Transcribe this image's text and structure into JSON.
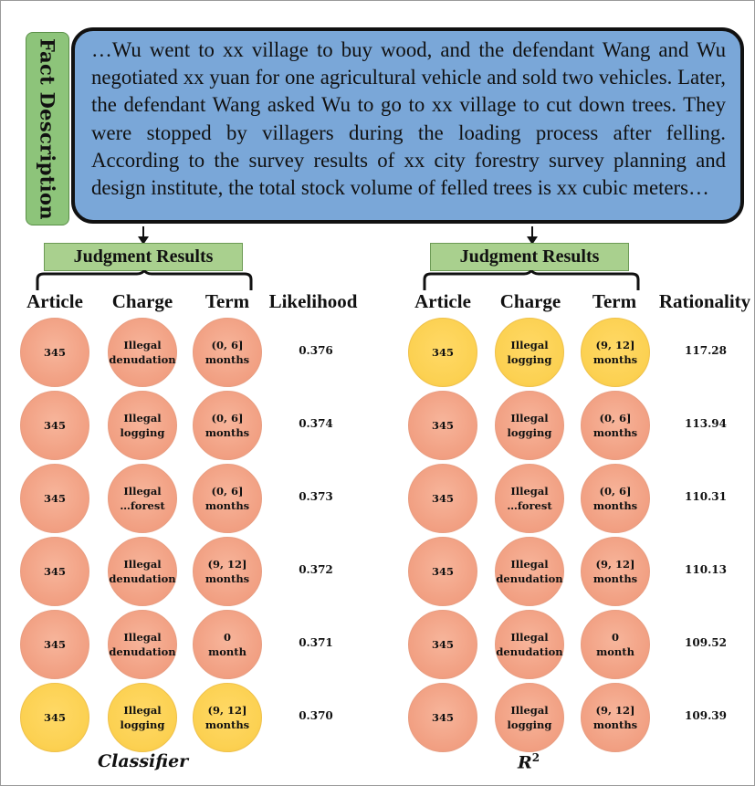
{
  "fact_label": "Fact Description",
  "fact_text": "…Wu went to xx village to buy wood, and the defendant Wang and Wu negotiated xx yuan for one agricultural vehicle and sold two vehicles. Later, the defendant Wang asked Wu to go to xx village to cut down trees. They were stopped by villagers during the loading process after felling. According to the survey results of xx city forestry survey planning and design institute, the total stock volume of felled trees is xx cubic meters…",
  "left": {
    "judgment_label": "Judgment Results",
    "headers": [
      "Article",
      "Charge",
      "Term",
      "Likelihood"
    ],
    "caption": "Classifier",
    "rows": [
      {
        "article": "345",
        "charge": "Illegal\ndenudation",
        "term": "(0, 6]\nmonths",
        "score": "0.376",
        "highlight": false
      },
      {
        "article": "345",
        "charge": "Illegal\nlogging",
        "term": "(0, 6]\nmonths",
        "score": "0.374",
        "highlight": false
      },
      {
        "article": "345",
        "charge": "Illegal\n…forest",
        "term": "(0, 6]\nmonths",
        "score": "0.373",
        "highlight": false
      },
      {
        "article": "345",
        "charge": "Illegal\ndenudation",
        "term": "(9, 12]\nmonths",
        "score": "0.372",
        "highlight": false
      },
      {
        "article": "345",
        "charge": "Illegal\ndenudation",
        "term": "0\nmonth",
        "score": "0.371",
        "highlight": false
      },
      {
        "article": "345",
        "charge": "Illegal\nlogging",
        "term": "(9, 12]\nmonths",
        "score": "0.370",
        "highlight": true
      }
    ]
  },
  "right": {
    "judgment_label": "Judgment Results",
    "headers": [
      "Article",
      "Charge",
      "Term",
      "Rationality"
    ],
    "caption_base": "R",
    "caption_sup": "2",
    "rows": [
      {
        "article": "345",
        "charge": "Illegal\nlogging",
        "term": "(9, 12]\nmonths",
        "score": "117.28",
        "highlight": true
      },
      {
        "article": "345",
        "charge": "Illegal\nlogging",
        "term": "(0, 6]\nmonths",
        "score": "113.94",
        "highlight": false
      },
      {
        "article": "345",
        "charge": "Illegal\n…forest",
        "term": "(0, 6]\nmonths",
        "score": "110.31",
        "highlight": false
      },
      {
        "article": "345",
        "charge": "Illegal\ndenudation",
        "term": "(9, 12]\nmonths",
        "score": "110.13",
        "highlight": false
      },
      {
        "article": "345",
        "charge": "Illegal\ndenudation",
        "term": "0\nmonth",
        "score": "109.52",
        "highlight": false
      },
      {
        "article": "345",
        "charge": "Illegal\nlogging",
        "term": "(9, 12]\nmonths",
        "score": "109.39",
        "highlight": false
      }
    ]
  },
  "colors": {
    "fact_box": "#7aa7d8",
    "label_green": "#a9d08e",
    "circle_salmon": "#f2a285",
    "circle_yellow": "#fcd152"
  }
}
